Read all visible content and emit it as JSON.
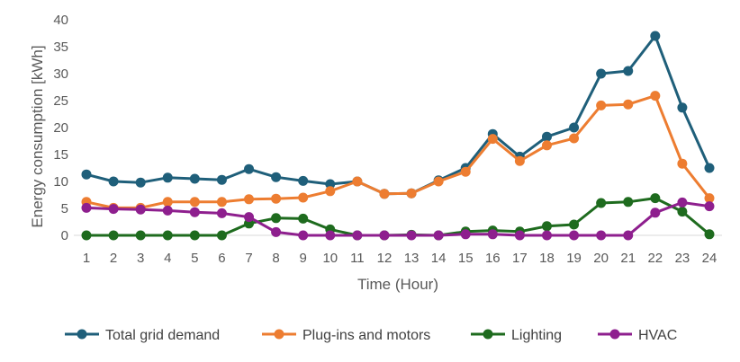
{
  "chart_data": {
    "type": "line",
    "title": "",
    "xlabel": "Time (Hour)",
    "ylabel": "Energy consumption [kWh]",
    "ylim": [
      0,
      40
    ],
    "yticks": [
      0,
      5,
      10,
      15,
      20,
      25,
      30,
      35,
      40
    ],
    "grid": false,
    "legend_position": "bottom",
    "x": [
      1,
      2,
      3,
      4,
      5,
      6,
      7,
      8,
      9,
      10,
      11,
      12,
      13,
      14,
      15,
      16,
      17,
      18,
      19,
      20,
      21,
      22,
      23,
      24
    ],
    "series": [
      {
        "name": "Total grid demand",
        "color": "#1f5f7a",
        "values": [
          11.3,
          10.0,
          9.8,
          10.7,
          10.5,
          10.3,
          12.3,
          10.8,
          10.1,
          9.5,
          10.0,
          7.7,
          7.8,
          10.2,
          12.5,
          18.8,
          14.6,
          18.3,
          20.0,
          30.0,
          30.5,
          37.0,
          23.7,
          12.5
        ]
      },
      {
        "name": "Plug-ins and motors",
        "color": "#ed7d31",
        "values": [
          6.2,
          5.1,
          5.1,
          6.2,
          6.2,
          6.2,
          6.7,
          6.8,
          7.0,
          8.2,
          10.0,
          7.7,
          7.8,
          10.0,
          11.8,
          17.9,
          13.8,
          16.7,
          18.0,
          24.1,
          24.3,
          25.9,
          13.3,
          6.9
        ]
      },
      {
        "name": "Lighting",
        "color": "#1e6b1e",
        "values": [
          0.0,
          0.0,
          0.0,
          0.0,
          0.0,
          0.0,
          2.2,
          3.2,
          3.1,
          1.1,
          0.0,
          0.0,
          0.1,
          0.0,
          0.7,
          0.9,
          0.7,
          1.7,
          2.0,
          6.0,
          6.2,
          6.9,
          4.4,
          0.2
        ]
      },
      {
        "name": "HVAC",
        "color": "#8e1f8e",
        "values": [
          5.1,
          4.9,
          4.8,
          4.6,
          4.3,
          4.1,
          3.4,
          0.6,
          0.0,
          0.0,
          0.0,
          0.0,
          0.0,
          0.0,
          0.2,
          0.2,
          0.0,
          0.0,
          0.0,
          0.0,
          0.0,
          4.2,
          6.1,
          5.4
        ]
      }
    ]
  }
}
